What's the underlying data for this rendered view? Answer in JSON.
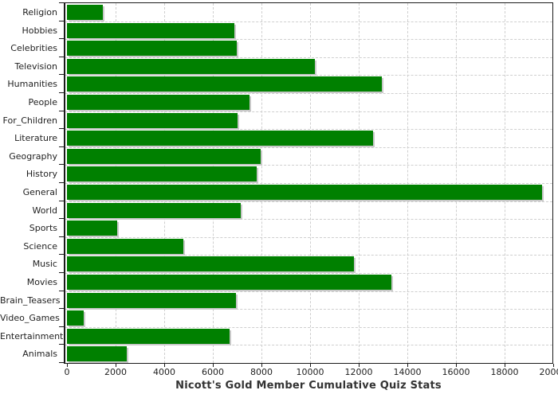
{
  "chart_data": {
    "type": "bar",
    "orientation": "horizontal",
    "title": "Nicott's Gold Member Cumulative Quiz Stats",
    "categories": [
      "Religion",
      "Hobbies",
      "Celebrities",
      "Television",
      "Humanities",
      "People",
      "For_Children",
      "Literature",
      "Geography",
      "History",
      "General",
      "World",
      "Sports",
      "Science",
      "Music",
      "Movies",
      "Brain_Teasers",
      "Video_Games",
      "Entertainment",
      "Animals"
    ],
    "values": [
      1475,
      6900,
      6975,
      10200,
      12950,
      7500,
      7000,
      12600,
      7975,
      7800,
      19550,
      7150,
      2050,
      4800,
      11800,
      13350,
      6950,
      700,
      6700,
      2450
    ],
    "xlabel": "",
    "ylabel": "",
    "xlim": [
      0,
      20000
    ],
    "x_ticks": [
      0,
      2000,
      4000,
      6000,
      8000,
      10000,
      12000,
      14000,
      16000,
      18000,
      20000
    ],
    "grid": "dashed, vertical at every 2000 and horizontal between category rows",
    "legend_position": "none",
    "colors": {
      "bar": "#008000",
      "bar_shadow": "#c9c9c9",
      "gridline": "#cfcfcf",
      "axis": "#1a1a1a",
      "tick_label": "#1f1f1f",
      "title_text": "#333333",
      "background": "#ffffff"
    }
  }
}
